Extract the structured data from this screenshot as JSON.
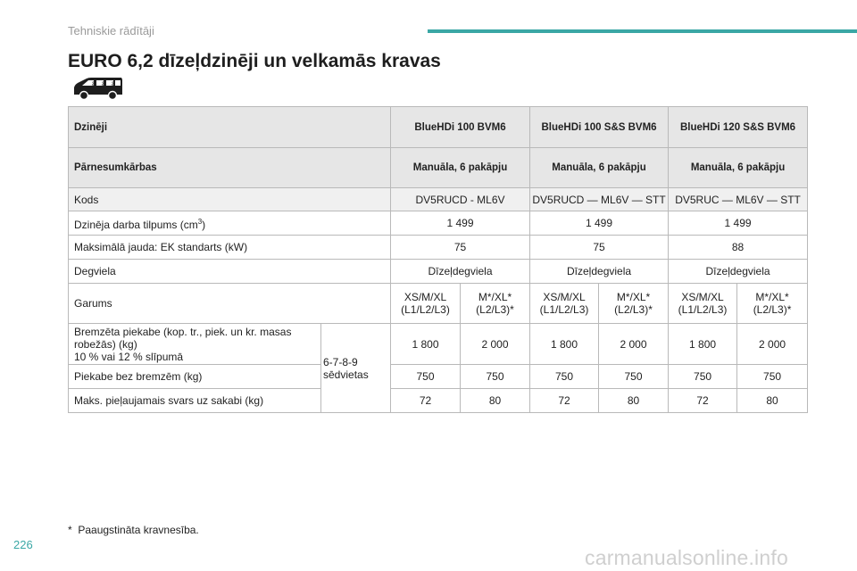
{
  "header": {
    "section": "Tehniskie rādītāji",
    "title": "EURO 6,2 dīzeļdzinēji un velkamās kravas",
    "accent_color": "#3aa7a5",
    "icon": "van-icon"
  },
  "table": {
    "engines_label": "Dzinēji",
    "engines": [
      "BlueHDi 100 BVM6",
      "BlueHDi 100 S&S BVM6",
      "BlueHDi 120 S&S BVM6"
    ],
    "gearbox_label": "Pārnesumkārbas",
    "gearboxes": [
      "Manuāla, 6 pakāpju",
      "Manuāla, 6 pakāpju",
      "Manuāla, 6 pakāpju"
    ],
    "code_label": "Kods",
    "codes": [
      "DV5RUCD - ML6V",
      "DV5RUCD — ML6V — STT",
      "DV5RUC — ML6V — STT"
    ],
    "capacity_label_main": "Dzinēja darba tilpums (cm",
    "capacity_label_sup": "3",
    "capacity_label_end": ")",
    "capacities": [
      "1 499",
      "1 499",
      "1 499"
    ],
    "power_label": "Maksimālā jauda: EK standarts (kW)",
    "powers": [
      "75",
      "75",
      "88"
    ],
    "fuel_label": "Degviela",
    "fuels": [
      "Dīzeļdegviela",
      "Dīzeļdegviela",
      "Dīzeļdegviela"
    ],
    "length_label": "Garums",
    "lengths": [
      {
        "line1": "XS/M/XL",
        "line2": "(L1/L2/L3)"
      },
      {
        "line1": "M*/XL*",
        "line2": "(L2/L3)*"
      },
      {
        "line1": "XS/M/XL",
        "line2": "(L1/L2/L3)"
      },
      {
        "line1": "M*/XL*",
        "line2": "(L2/L3)*"
      },
      {
        "line1": "XS/M/XL",
        "line2": "(L1/L2/L3)"
      },
      {
        "line1": "M*/XL*",
        "line2": "(L2/L3)*"
      }
    ],
    "braked_label_line1": "Bremzēta piekabe (kop. tr., piek. un kr. masas",
    "braked_label_line2": "robežās) (kg)",
    "braked_label_line3": "10 % vai 12 % slīpumā",
    "seats_line1": "6-7-8-9",
    "seats_line2": "sēdvietas",
    "braked": [
      "1 800",
      "2 000",
      "1 800",
      "2 000",
      "1 800",
      "2 000"
    ],
    "unbraked_label": "Piekabe bez bremzēm (kg)",
    "unbraked": [
      "750",
      "750",
      "750",
      "750",
      "750",
      "750"
    ],
    "noseweight_label": "Maks. pieļaujamais svars uz sakabi (kg)",
    "noseweights": [
      "72",
      "80",
      "72",
      "80",
      "72",
      "80"
    ]
  },
  "footnote": {
    "marker": "*",
    "text": "Paaugstināta kravnesība."
  },
  "page_number": "226",
  "watermark": "carmanualsonline.info"
}
